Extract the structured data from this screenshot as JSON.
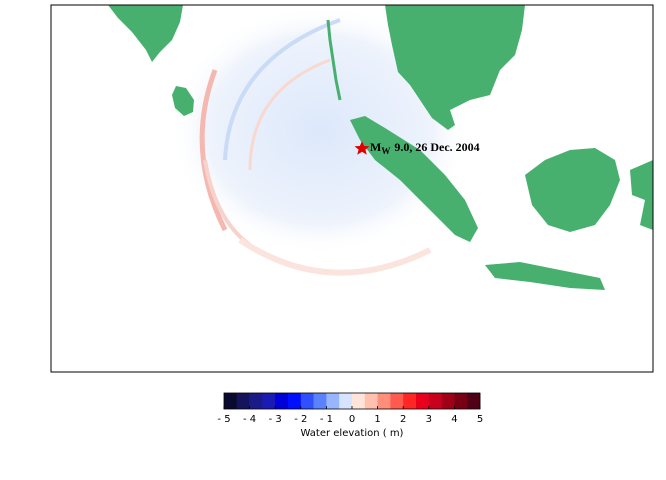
{
  "annotation": {
    "main": "M",
    "subscript": "W",
    "text": "9.0, 26 Dec. 2004"
  },
  "colorbar": {
    "label": "Water elevation ( m)",
    "range": [
      -5,
      5
    ],
    "ticks": [
      {
        "value": -5,
        "label": "- 5"
      },
      {
        "value": -4,
        "label": "- 4"
      },
      {
        "value": -3,
        "label": "- 3"
      },
      {
        "value": -2,
        "label": "- 2"
      },
      {
        "value": -1,
        "label": "- 1"
      },
      0,
      1,
      2,
      3,
      4,
      5
    ],
    "colors": [
      "#0a0a30",
      "#14145a",
      "#1a1a88",
      "#1a1ab4",
      "#0000d8",
      "#0010ff",
      "#3050ff",
      "#5a82ff",
      "#98b6ff",
      "#d6e4ff",
      "#ffe4da",
      "#ffc0ae",
      "#ff8e7a",
      "#ff5a50",
      "#ff2626",
      "#e8001c",
      "#c8001e",
      "#a00016",
      "#780014",
      "#500016"
    ]
  }
}
